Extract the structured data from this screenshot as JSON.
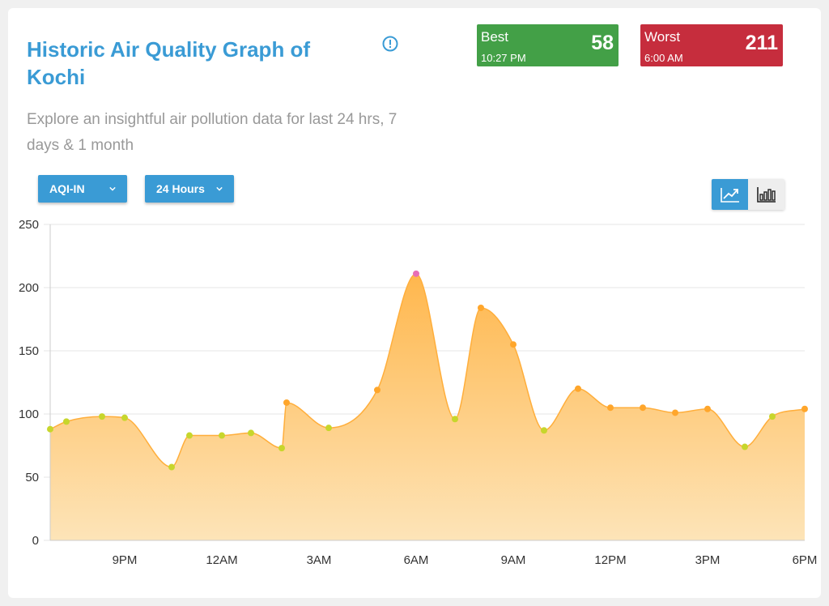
{
  "header": {
    "title": "Historic Air Quality Graph of Kochi",
    "subtitle": "Explore an insightful air pollution data for last 24 hrs, 7 days & 1 month",
    "info_icon": "info-circle-icon"
  },
  "best": {
    "label": "Best",
    "time": "10:27 PM",
    "value": "58",
    "color": "#43a047"
  },
  "worst": {
    "label": "Worst",
    "time": "6:00 AM",
    "value": "211",
    "color": "#c62d3d"
  },
  "controls": {
    "metric_select": "AQI-IN",
    "range_select": "24 Hours",
    "view_toggle": [
      {
        "icon": "line-chart-icon",
        "active": true
      },
      {
        "icon": "bar-chart-icon",
        "active": false
      }
    ]
  },
  "colors": {
    "accent": "#3a9bd5",
    "area_top": "#ffb74d",
    "area_bottom": "#fde4b8",
    "good": "#c7d62c",
    "moderate": "#ffa62b",
    "poor": "#e86fb6"
  },
  "chart_data": {
    "type": "area",
    "xlabel": "",
    "ylabel": "",
    "ylim": [
      0,
      250
    ],
    "yticks": [
      0,
      50,
      100,
      150,
      200,
      250
    ],
    "xticks": [
      "9PM",
      "12AM",
      "3AM",
      "6AM",
      "9AM",
      "12PM",
      "3PM",
      "6PM"
    ],
    "x_range_hours": [
      18.7,
      42
    ],
    "grid": true,
    "series": [
      {
        "x": [
          18.7,
          19.2,
          20.3,
          21.0,
          22.45,
          23.0,
          24.0,
          24.9,
          25.85,
          26.0,
          27.3,
          28.8,
          30.0,
          31.2,
          32.0,
          33.0,
          33.95,
          35.0,
          36.0,
          37.0,
          38.0,
          39.0,
          40.15,
          41.0,
          42.0
        ],
        "values": [
          88,
          94,
          98,
          97,
          58,
          83,
          83,
          85,
          73,
          109,
          89,
          119,
          211,
          96,
          184,
          155,
          87,
          120,
          105,
          105,
          101,
          104,
          74,
          98,
          104
        ]
      }
    ]
  }
}
